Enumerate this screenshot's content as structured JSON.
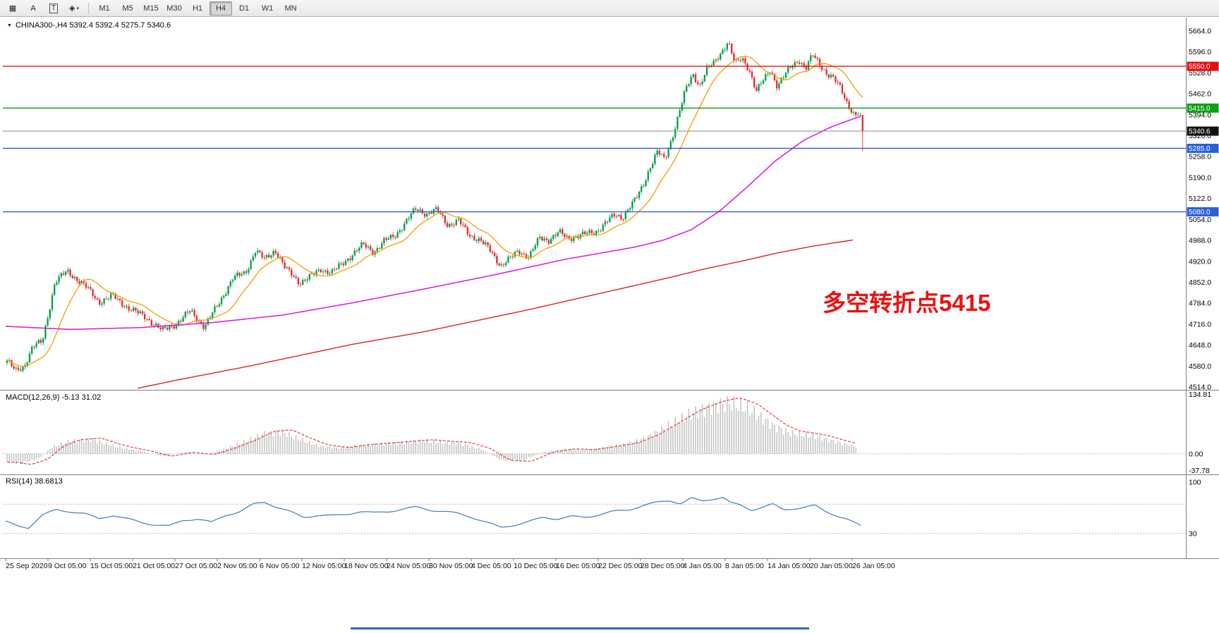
{
  "toolbar": {
    "tools": [
      {
        "id": "crosshair",
        "glyph": "▦"
      },
      {
        "id": "text-label",
        "glyph": "A"
      },
      {
        "id": "text-tool",
        "glyph": "T",
        "boxed": true
      },
      {
        "id": "drawing-tools",
        "glyph": "◈",
        "caret": "▾"
      }
    ],
    "timeframes": [
      "M1",
      "M5",
      "M15",
      "M30",
      "H1",
      "H4",
      "D1",
      "W1",
      "MN"
    ],
    "active_timeframe": "H4"
  },
  "icons": {
    "chart_dropdown": "▼"
  },
  "chart": {
    "title": "CHINA300-,H4 5392.4 5392.4 5275.7 5340.6",
    "annotation": "多空转折点5415",
    "macd_label": "MACD(12,26,9) -5.13 31.02",
    "rsi_label": "RSI(14) 38.6813"
  },
  "colors": {
    "candle_up": "#0aa14e",
    "candle_down": "#e43030",
    "ma_fast": "#ff9900",
    "ma_mid": "#dd22dd",
    "ma_slow": "#e02020",
    "macd_hist": "#c4c4c4",
    "macd_signal": "#e03030",
    "rsi_line": "#3f7cc0",
    "annotation": "#e81212"
  },
  "chart_data": {
    "type": "candlestick",
    "symbol": "CHINA300-",
    "timeframe": "H4",
    "last_bar": {
      "open": 5392.4,
      "high": 5392.4,
      "low": 5275.7,
      "close": 5340.6
    },
    "price_axis": {
      "min": 4514,
      "max": 5664,
      "ticks": [
        "5664.0",
        "5596.0",
        "5528.0",
        "5462.0",
        "5394.0",
        "5326.0",
        "5258.0",
        "5190.0",
        "5122.0",
        "5054.0",
        "4988.0",
        "4920.0",
        "4852.0",
        "4784.0",
        "4716.0",
        "4648.0",
        "4580.0",
        "4514.0"
      ]
    },
    "levels": [
      {
        "price": 5550.0,
        "label": "5550.0",
        "badge_color": "#e81010",
        "line_color": "#e81010",
        "type": "resistance"
      },
      {
        "price": 5415.0,
        "label": "5415.0",
        "badge_color": "#0fa012",
        "line_color": "#0fa012",
        "type": "pivot"
      },
      {
        "price": 5340.6,
        "label": "5340.6",
        "badge_color": "#111111",
        "line_color": "#8a8a8a",
        "type": "current-price"
      },
      {
        "price": 5285.0,
        "label": "5285.0",
        "badge_color": "#2a5fd9",
        "line_color": "#2a5fd9",
        "type": "support"
      },
      {
        "price": 5080.0,
        "label": "5080.0",
        "badge_color": "#2a5fd9",
        "line_color": "#2a5fd9",
        "type": "support"
      }
    ],
    "price_path": [
      [
        10,
        4600
      ],
      [
        22,
        4560
      ],
      [
        34,
        4575
      ],
      [
        46,
        4640
      ],
      [
        60,
        4660
      ],
      [
        78,
        4860
      ],
      [
        95,
        4890
      ],
      [
        115,
        4850
      ],
      [
        140,
        4785
      ],
      [
        160,
        4810
      ],
      [
        185,
        4770
      ],
      [
        205,
        4740
      ],
      [
        230,
        4690
      ],
      [
        250,
        4720
      ],
      [
        270,
        4765
      ],
      [
        290,
        4710
      ],
      [
        310,
        4780
      ],
      [
        330,
        4860
      ],
      [
        348,
        4885
      ],
      [
        362,
        4960
      ],
      [
        375,
        4930
      ],
      [
        390,
        4958
      ],
      [
        405,
        4890
      ],
      [
        425,
        4848
      ],
      [
        440,
        4870
      ],
      [
        455,
        4900
      ],
      [
        470,
        4888
      ],
      [
        485,
        4912
      ],
      [
        500,
        4940
      ],
      [
        515,
        4968
      ],
      [
        530,
        4950
      ],
      [
        545,
        4988
      ],
      [
        560,
        5010
      ],
      [
        575,
        5048
      ],
      [
        590,
        5088
      ],
      [
        605,
        5068
      ],
      [
        620,
        5082
      ],
      [
        635,
        5040
      ],
      [
        650,
        5055
      ],
      [
        665,
        5010
      ],
      [
        680,
        4988
      ],
      [
        695,
        4950
      ],
      [
        710,
        4902
      ],
      [
        722,
        4925
      ],
      [
        735,
        4958
      ],
      [
        750,
        4940
      ],
      [
        765,
        4998
      ],
      [
        778,
        4988
      ],
      [
        792,
        5008
      ],
      [
        805,
        4990
      ],
      [
        818,
        5002
      ],
      [
        832,
        5012
      ],
      [
        845,
        5022
      ],
      [
        860,
        5050
      ],
      [
        872,
        5068
      ],
      [
        882,
        5058
      ],
      [
        892,
        5088
      ],
      [
        902,
        5118
      ],
      [
        912,
        5168
      ],
      [
        922,
        5230
      ],
      [
        932,
        5278
      ],
      [
        942,
        5252
      ],
      [
        952,
        5318
      ],
      [
        962,
        5395
      ],
      [
        972,
        5470
      ],
      [
        982,
        5520
      ],
      [
        992,
        5484
      ],
      [
        1002,
        5538
      ],
      [
        1012,
        5560
      ],
      [
        1022,
        5600
      ],
      [
        1032,
        5635
      ],
      [
        1042,
        5560
      ],
      [
        1052,
        5580
      ],
      [
        1062,
        5540
      ],
      [
        1072,
        5462
      ],
      [
        1082,
        5500
      ],
      [
        1092,
        5538
      ],
      [
        1102,
        5482
      ],
      [
        1112,
        5520
      ],
      [
        1122,
        5558
      ],
      [
        1132,
        5578
      ],
      [
        1142,
        5542
      ],
      [
        1152,
        5588
      ],
      [
        1162,
        5558
      ],
      [
        1172,
        5520
      ],
      [
        1182,
        5502
      ],
      [
        1192,
        5478
      ],
      [
        1202,
        5428
      ],
      [
        1212,
        5390
      ],
      [
        1220,
        5405
      ],
      [
        1226,
        5392
      ]
    ],
    "ma_magenta": [
      [
        8,
        4710
      ],
      [
        100,
        4700
      ],
      [
        200,
        4706
      ],
      [
        300,
        4722
      ],
      [
        400,
        4746
      ],
      [
        500,
        4786
      ],
      [
        600,
        4830
      ],
      [
        700,
        4876
      ],
      [
        800,
        4926
      ],
      [
        860,
        4950
      ],
      [
        900,
        4966
      ],
      [
        940,
        4988
      ],
      [
        980,
        5022
      ],
      [
        1020,
        5082
      ],
      [
        1060,
        5162
      ],
      [
        1100,
        5246
      ],
      [
        1140,
        5312
      ],
      [
        1180,
        5356
      ],
      [
        1222,
        5390
      ]
    ],
    "ma_red": [
      [
        195,
        4510
      ],
      [
        250,
        4536
      ],
      [
        300,
        4558
      ],
      [
        350,
        4580
      ],
      [
        400,
        4604
      ],
      [
        450,
        4628
      ],
      [
        500,
        4652
      ],
      [
        550,
        4672
      ],
      [
        600,
        4692
      ],
      [
        650,
        4716
      ],
      [
        700,
        4740
      ],
      [
        750,
        4764
      ],
      [
        800,
        4790
      ],
      [
        850,
        4816
      ],
      [
        900,
        4842
      ],
      [
        950,
        4868
      ],
      [
        1000,
        4896
      ],
      [
        1050,
        4920
      ],
      [
        1100,
        4946
      ],
      [
        1150,
        4968
      ],
      [
        1212,
        4990
      ]
    ],
    "macd": {
      "axis_ticks": [
        {
          "v": 134.81,
          "label": "134.81"
        },
        {
          "v": 0,
          "label": "0.00"
        },
        {
          "v": -37.78,
          "label": "-37.78"
        }
      ],
      "range": [
        -45,
        140
      ],
      "envelope": [
        [
          8,
          -20
        ],
        [
          30,
          -26
        ],
        [
          55,
          -12
        ],
        [
          75,
          18
        ],
        [
          100,
          34
        ],
        [
          130,
          38
        ],
        [
          150,
          26
        ],
        [
          175,
          15
        ],
        [
          200,
          7
        ],
        [
          230,
          -6
        ],
        [
          260,
          4
        ],
        [
          290,
          -2
        ],
        [
          320,
          14
        ],
        [
          350,
          34
        ],
        [
          375,
          54
        ],
        [
          400,
          58
        ],
        [
          420,
          42
        ],
        [
          450,
          22
        ],
        [
          480,
          15
        ],
        [
          510,
          22
        ],
        [
          540,
          26
        ],
        [
          570,
          30
        ],
        [
          600,
          34
        ],
        [
          625,
          30
        ],
        [
          650,
          28
        ],
        [
          680,
          14
        ],
        [
          710,
          -16
        ],
        [
          740,
          -18
        ],
        [
          770,
          4
        ],
        [
          800,
          12
        ],
        [
          830,
          10
        ],
        [
          860,
          18
        ],
        [
          890,
          26
        ],
        [
          920,
          46
        ],
        [
          950,
          76
        ],
        [
          980,
          106
        ],
        [
          1010,
          126
        ],
        [
          1035,
          135
        ],
        [
          1060,
          120
        ],
        [
          1080,
          95
        ],
        [
          1100,
          70
        ],
        [
          1120,
          55
        ],
        [
          1140,
          50
        ],
        [
          1160,
          44
        ],
        [
          1180,
          34
        ],
        [
          1200,
          25
        ],
        [
          1212,
          20
        ]
      ]
    },
    "rsi": {
      "axis_ticks": [
        {
          "v": 100,
          "label": "100"
        },
        {
          "v": 30,
          "label": "30"
        }
      ],
      "levels": [
        70,
        30
      ],
      "range": [
        0,
        100
      ],
      "path": [
        [
          8,
          46
        ],
        [
          25,
          40
        ],
        [
          40,
          38
        ],
        [
          60,
          55
        ],
        [
          80,
          62
        ],
        [
          100,
          60
        ],
        [
          120,
          57
        ],
        [
          140,
          50
        ],
        [
          160,
          55
        ],
        [
          180,
          50
        ],
        [
          200,
          45
        ],
        [
          220,
          42
        ],
        [
          240,
          40
        ],
        [
          260,
          48
        ],
        [
          280,
          50
        ],
        [
          300,
          45
        ],
        [
          320,
          55
        ],
        [
          340,
          60
        ],
        [
          360,
          70
        ],
        [
          375,
          73
        ],
        [
          390,
          67
        ],
        [
          410,
          60
        ],
        [
          430,
          52
        ],
        [
          450,
          55
        ],
        [
          470,
          54
        ],
        [
          490,
          56
        ],
        [
          510,
          60
        ],
        [
          530,
          58
        ],
        [
          550,
          60
        ],
        [
          570,
          63
        ],
        [
          590,
          66
        ],
        [
          610,
          62
        ],
        [
          630,
          60
        ],
        [
          650,
          57
        ],
        [
          670,
          52
        ],
        [
          690,
          45
        ],
        [
          710,
          38
        ],
        [
          730,
          42
        ],
        [
          750,
          46
        ],
        [
          770,
          52
        ],
        [
          790,
          50
        ],
        [
          810,
          53
        ],
        [
          830,
          52
        ],
        [
          850,
          56
        ],
        [
          870,
          60
        ],
        [
          890,
          62
        ],
        [
          910,
          68
        ],
        [
          930,
          72
        ],
        [
          950,
          75
        ],
        [
          965,
          71
        ],
        [
          980,
          78
        ],
        [
          995,
          74
        ],
        [
          1010,
          77
        ],
        [
          1025,
          80
        ],
        [
          1035,
          72
        ],
        [
          1050,
          68
        ],
        [
          1065,
          62
        ],
        [
          1080,
          66
        ],
        [
          1095,
          70
        ],
        [
          1110,
          62
        ],
        [
          1125,
          64
        ],
        [
          1140,
          66
        ],
        [
          1155,
          68
        ],
        [
          1170,
          60
        ],
        [
          1185,
          55
        ],
        [
          1200,
          50
        ],
        [
          1212,
          44
        ],
        [
          1222,
          39
        ]
      ]
    },
    "time_labels": [
      "25 Sep 2020",
      "9 Oct 05:00",
      "15 Oct 05:00",
      "21 Oct 05:00",
      "27 Oct 05:00",
      "2 Nov 05:00",
      "6 Nov 05:00",
      "12 Nov 05:00",
      "18 Nov 05:00",
      "24 Nov 05:00",
      "30 Nov 05:00",
      "4 Dec 05:00",
      "10 Dec 05:00",
      "16 Dec 05:00",
      "22 Dec 05:00",
      "28 Dec 05:00",
      "4 Jan 05:00",
      "8 Jan 05:00",
      "14 Jan 05:00",
      "20 Jan 05:00",
      "26 Jan 05:00"
    ]
  }
}
